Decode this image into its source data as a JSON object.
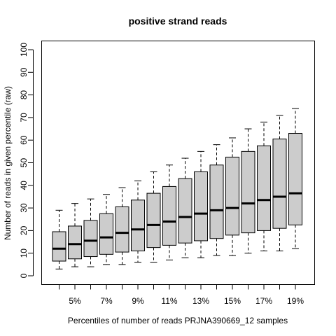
{
  "chart_data": {
    "type": "boxplot",
    "title": "positive strand reads",
    "xlabel": "Percentiles of number of reads PRJNA390669_12 samples",
    "ylabel": "Number of reads in given percentile (raw)",
    "ylim": [
      0,
      100
    ],
    "yticks": [
      0,
      10,
      20,
      30,
      40,
      50,
      60,
      70,
      80,
      90,
      100
    ],
    "x_tick_labels": [
      "5%",
      "7%",
      "9%",
      "11%",
      "13%",
      "15%",
      "17%",
      "19%"
    ],
    "x_tick_label_positions": [
      2,
      4,
      6,
      8,
      10,
      12,
      14,
      16
    ],
    "grid": false,
    "box_color": "#cccccc",
    "boxes": [
      {
        "position": 1,
        "min": 3,
        "q1": 6.5,
        "median": 12,
        "q3": 19.5,
        "max": 29
      },
      {
        "position": 2,
        "min": 4,
        "q1": 7.5,
        "median": 14,
        "q3": 22,
        "max": 32
      },
      {
        "position": 3,
        "min": 4,
        "q1": 8.5,
        "median": 15.5,
        "q3": 24.5,
        "max": 34
      },
      {
        "position": 4,
        "min": 5,
        "q1": 9.5,
        "median": 17,
        "q3": 27.5,
        "max": 36
      },
      {
        "position": 5,
        "min": 5,
        "q1": 10.5,
        "median": 19,
        "q3": 30.5,
        "max": 39
      },
      {
        "position": 6,
        "min": 6,
        "q1": 11,
        "median": 20.5,
        "q3": 33.5,
        "max": 42
      },
      {
        "position": 7,
        "min": 6,
        "q1": 12.5,
        "median": 22.5,
        "q3": 36.5,
        "max": 46
      },
      {
        "position": 8,
        "min": 7,
        "q1": 13.5,
        "median": 24,
        "q3": 39.5,
        "max": 49
      },
      {
        "position": 9,
        "min": 8,
        "q1": 14.5,
        "median": 26,
        "q3": 43,
        "max": 52
      },
      {
        "position": 10,
        "min": 8,
        "q1": 15.5,
        "median": 27.5,
        "q3": 46,
        "max": 55
      },
      {
        "position": 11,
        "min": 9,
        "q1": 16.5,
        "median": 29,
        "q3": 49,
        "max": 58
      },
      {
        "position": 12,
        "min": 9,
        "q1": 18,
        "median": 30,
        "q3": 52.5,
        "max": 61
      },
      {
        "position": 13,
        "min": 10,
        "q1": 19,
        "median": 32,
        "q3": 55,
        "max": 65
      },
      {
        "position": 14,
        "min": 11,
        "q1": 20,
        "median": 33.5,
        "q3": 57.5,
        "max": 68
      },
      {
        "position": 15,
        "min": 11,
        "q1": 21,
        "median": 35,
        "q3": 60.5,
        "max": 71
      },
      {
        "position": 16,
        "min": 12,
        "q1": 22.5,
        "median": 36.5,
        "q3": 63,
        "max": 74
      }
    ]
  }
}
